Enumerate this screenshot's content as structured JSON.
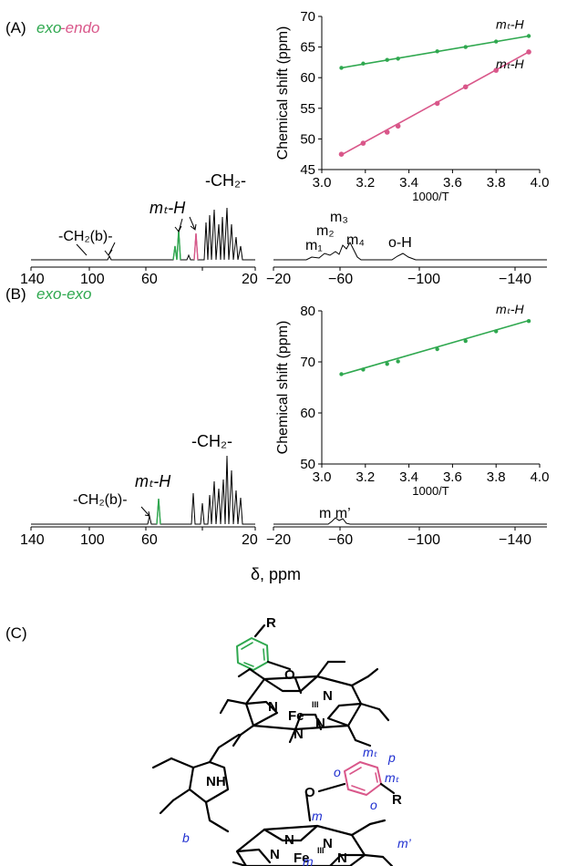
{
  "colors": {
    "green": "#2fa84f",
    "pink": "#d9578a",
    "black": "#000000",
    "blue": "#1f2fd0"
  },
  "panelA": {
    "label": "(A)",
    "title_part1": "exo",
    "title_part2": "-endo",
    "spectrum_annotations": {
      "ch2b": "-CH₂(b)-",
      "mtH": "mₜ-H",
      "ch2": "-CH₂-",
      "m1": "m₁",
      "m2": "m₂",
      "m3": "m₃",
      "m4": "m₄",
      "oH": "o-H"
    },
    "left_axis_ticks": [
      "140",
      "100",
      "60",
      "20"
    ],
    "right_axis_ticks": [
      "−20",
      "−60",
      "−100",
      "−140"
    ]
  },
  "panelB": {
    "label": "(B)",
    "title": "exo-exo",
    "spectrum_annotations": {
      "ch2b": "-CH₂(b)-",
      "mtH": "mₜ-H",
      "ch2": "-CH₂-",
      "mm": "m m’"
    },
    "left_axis_ticks": [
      "140",
      "100",
      "60",
      "20"
    ],
    "right_axis_ticks": [
      "−20",
      "−60",
      "−100",
      "−140"
    ]
  },
  "xaxis_common_label": "δ, ppm",
  "panelC": {
    "label": "(C)",
    "atom_labels": [
      "R",
      "O",
      "N",
      "Fe",
      "III",
      "N",
      "N",
      "N",
      "NH",
      "R",
      "O",
      "N",
      "Fe",
      "III",
      "N",
      "N",
      "N"
    ],
    "position_labels": [
      "mₜ",
      "p",
      "o",
      "mₜ",
      "o",
      "m",
      "b",
      "m’",
      "m"
    ]
  },
  "chart_data": [
    {
      "type": "scatter",
      "panel": "A-inset",
      "xlabel": "1000/T",
      "ylabel": "Chemical shift (ppm)",
      "xlim": [
        3.0,
        4.0
      ],
      "ylim": [
        45,
        70
      ],
      "xticks": [
        "3.0",
        "3.2",
        "3.4",
        "3.6",
        "3.8",
        "4.0"
      ],
      "yticks": [
        "45",
        "50",
        "55",
        "60",
        "65",
        "70"
      ],
      "series": [
        {
          "name": "mₜ-H",
          "color": "#2fa84f",
          "x": [
            3.09,
            3.19,
            3.3,
            3.35,
            3.53,
            3.66,
            3.8,
            3.95
          ],
          "y": [
            61.6,
            62.3,
            62.9,
            63.1,
            64.3,
            65.0,
            65.9,
            66.8
          ],
          "fit": [
            [
              3.09,
              61.6
            ],
            [
              3.95,
              66.8
            ]
          ]
        },
        {
          "name": "mₜ-H",
          "color": "#d9578a",
          "x": [
            3.09,
            3.19,
            3.3,
            3.35,
            3.53,
            3.66,
            3.8,
            3.95
          ],
          "y": [
            47.5,
            49.3,
            51.1,
            52.1,
            55.8,
            58.5,
            61.2,
            64.2
          ],
          "fit": [
            [
              3.09,
              47.4
            ],
            [
              3.95,
              64.2
            ]
          ]
        }
      ]
    },
    {
      "type": "scatter",
      "panel": "B-inset",
      "xlabel": "1000/T",
      "ylabel": "Chemical shift (ppm)",
      "xlim": [
        3.0,
        4.0
      ],
      "ylim": [
        50,
        80
      ],
      "xticks": [
        "3.0",
        "3.2",
        "3.4",
        "3.6",
        "3.8",
        "4.0"
      ],
      "yticks": [
        "50",
        "60",
        "70",
        "80"
      ],
      "series": [
        {
          "name": "mₜ-H",
          "color": "#2fa84f",
          "x": [
            3.09,
            3.19,
            3.3,
            3.35,
            3.53,
            3.66,
            3.8,
            3.95
          ],
          "y": [
            67.6,
            68.5,
            69.6,
            70.1,
            72.5,
            74.1,
            76.0,
            78.0
          ],
          "fit": [
            [
              3.09,
              67.5
            ],
            [
              3.95,
              78.1
            ]
          ]
        }
      ]
    }
  ]
}
